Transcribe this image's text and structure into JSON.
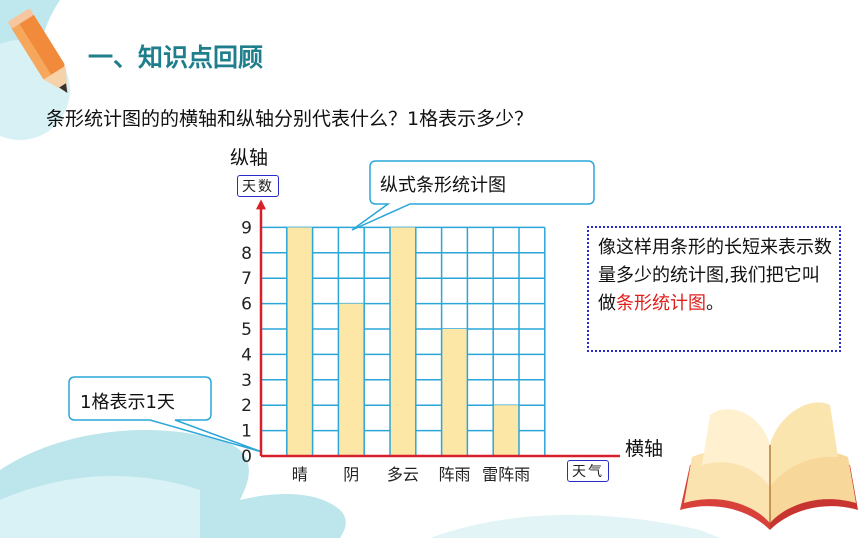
{
  "slide": {
    "title": "一、知识点回顾",
    "question": "条形统计图的的横轴和纵轴分别代表什么？1格表示多少？",
    "y_axis_name": "纵轴",
    "x_axis_name": "横轴",
    "callout_vertical": "纵式条形统计图",
    "callout_scale": "1格表示1天",
    "note_text": "像这样用条形的长短来表示数量多少的统计图,我们把它叫做",
    "note_highlight": "条形统计图",
    "note_end": "。"
  },
  "chart_data": {
    "type": "bar",
    "orientation": "vertical",
    "title": "",
    "xlabel": "天气",
    "ylabel": "天数",
    "categories": [
      "晴",
      "阴",
      "多云",
      "阵雨",
      "雷阵雨"
    ],
    "values": [
      9,
      6,
      9,
      5,
      2
    ],
    "ylim": [
      0,
      9
    ],
    "yticks": [
      0,
      1,
      2,
      3,
      4,
      5,
      6,
      7,
      8,
      9
    ],
    "grid": true,
    "colors": {
      "bar": "#fde7a6",
      "grid": "#2aa6d8",
      "axis": "#d8202a",
      "accent": "#1f7e8c"
    }
  }
}
